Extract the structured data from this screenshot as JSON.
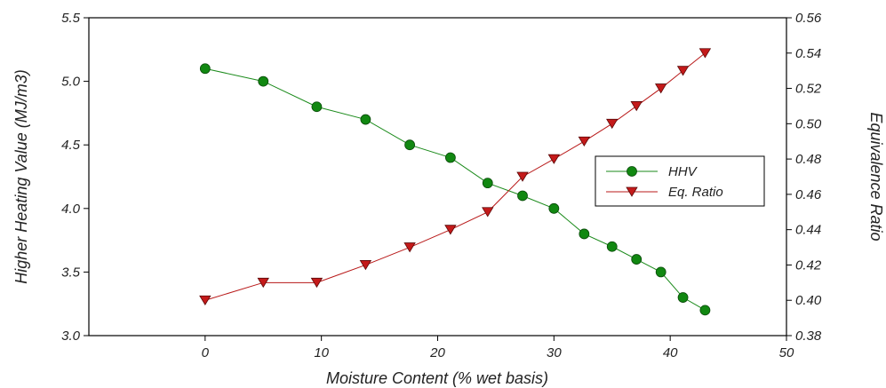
{
  "chart_data": {
    "type": "line",
    "xlabel": "Moisture Content (% wet basis)",
    "ylabel_left": "Higher Heating Value (MJ/m3)",
    "ylabel_right": "Equivalence Ratio",
    "xlim": [
      -10,
      50
    ],
    "ylim_left": [
      3.0,
      5.5
    ],
    "ylim_right": [
      0.38,
      0.56
    ],
    "x_ticks": [
      0,
      10,
      20,
      30,
      40,
      50
    ],
    "y_left_ticks": [
      "3.0",
      "3.5",
      "4.0",
      "4.5",
      "5.0",
      "5.5"
    ],
    "y_right_ticks": [
      "0.38",
      "0.40",
      "0.42",
      "0.44",
      "0.46",
      "0.48",
      "0.50",
      "0.52",
      "0.54",
      "0.56"
    ],
    "grid": false,
    "legend_position": "right",
    "series": [
      {
        "name": "HHV",
        "axis": "left",
        "color": "#1a8a1a",
        "marker_color": "#118811",
        "marker": "circle",
        "points": [
          [
            0,
            5.1
          ],
          [
            5,
            5.0
          ],
          [
            9.6,
            4.8
          ],
          [
            13.8,
            4.7
          ],
          [
            17.6,
            4.5
          ],
          [
            21.1,
            4.4
          ],
          [
            24.3,
            4.2
          ],
          [
            27.3,
            4.1
          ],
          [
            30,
            4.0
          ],
          [
            32.6,
            3.8
          ],
          [
            35,
            3.7
          ],
          [
            37.1,
            3.6
          ],
          [
            39.2,
            3.5
          ],
          [
            41.1,
            3.3
          ],
          [
            43,
            3.2
          ]
        ]
      },
      {
        "name": "Eq. Ratio",
        "axis": "right",
        "color": "#b81818",
        "marker_color": "#c41a1a",
        "marker": "triangle-down",
        "points": [
          [
            0,
            0.4
          ],
          [
            5,
            0.41
          ],
          [
            9.6,
            0.41
          ],
          [
            13.8,
            0.42
          ],
          [
            17.6,
            0.43
          ],
          [
            21.1,
            0.44
          ],
          [
            24.3,
            0.45
          ],
          [
            27.3,
            0.47
          ],
          [
            30,
            0.48
          ],
          [
            32.6,
            0.49
          ],
          [
            35,
            0.5
          ],
          [
            37.1,
            0.51
          ],
          [
            39.2,
            0.52
          ],
          [
            41.1,
            0.53
          ],
          [
            43,
            0.54
          ]
        ]
      }
    ]
  }
}
